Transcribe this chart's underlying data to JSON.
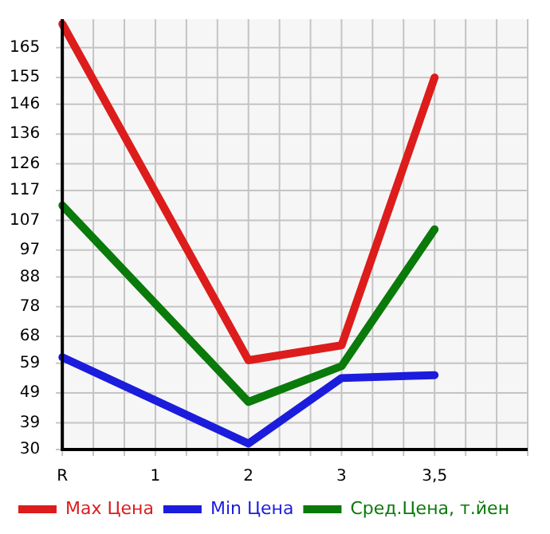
{
  "chart_data": {
    "type": "line",
    "categories": [
      "R",
      "1",
      "2",
      "3",
      "3,5",
      null
    ],
    "series": [
      {
        "name": "Max Цена",
        "color": "#dd1c1c",
        "values": [
          173,
          null,
          60,
          65,
          155,
          null
        ]
      },
      {
        "name": "Min Цена",
        "color": "#1c1cdd",
        "values": [
          61,
          null,
          32,
          54,
          55,
          null
        ]
      },
      {
        "name": "Сред.Цена, т.йен",
        "color": "#0a7a0a",
        "values": [
          112,
          null,
          46,
          58,
          104,
          null
        ]
      }
    ],
    "ylim": [
      30,
      174.6
    ],
    "yticks": [
      30,
      39,
      49,
      59,
      68,
      78,
      88,
      97,
      107,
      117,
      126,
      136,
      146,
      155,
      165
    ],
    "grid": true,
    "legend": "bottom",
    "marker": "none",
    "line_style": "solid"
  }
}
